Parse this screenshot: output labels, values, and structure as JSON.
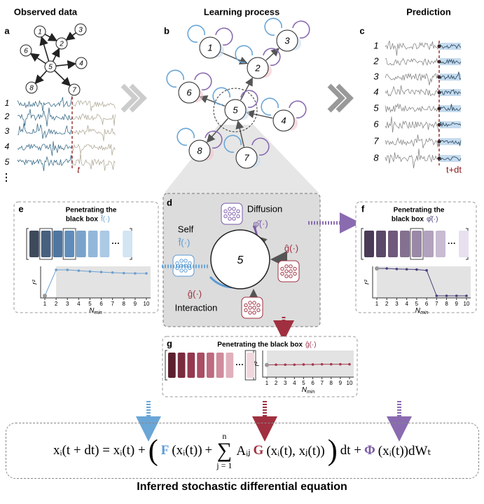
{
  "titles": [
    "Observed data",
    "Learning process",
    "Prediction"
  ],
  "panel_a": {
    "letter": "a",
    "nodes": [
      "1",
      "2",
      "3",
      "4",
      "5",
      "6",
      "7",
      "8"
    ],
    "series_labels": [
      "1",
      "2",
      "3",
      "4",
      "5"
    ],
    "more": "⋮",
    "time_label": "t"
  },
  "panel_b": {
    "letter": "b",
    "nodes": [
      "1",
      "2",
      "3",
      "4",
      "5",
      "6",
      "7",
      "8"
    ]
  },
  "panel_c": {
    "letter": "c",
    "series_labels": [
      "1",
      "2",
      "3",
      "4",
      "5",
      "6",
      "7",
      "8"
    ],
    "time_label": "t+dt"
  },
  "panel_d": {
    "letter": "d",
    "node": "5",
    "diffusion": "Diffusion",
    "phi": "φ̂(·)",
    "self": "Self",
    "f": "f̂(·)",
    "g_right": "ĝ(·)",
    "g_bottom": "ĝ(·)",
    "interaction": "Interaction"
  },
  "panel_e": {
    "letter": "e",
    "title_lines": [
      "Penetrating the",
      "black box"
    ],
    "func": "f̂(·)",
    "ellipsis": "···",
    "bar_colors": [
      "#3e4a5c",
      "#47607e",
      "#4f76a0",
      "#5f8cba",
      "#7aa3cc",
      "#93b7db",
      "#acc9e5",
      "#d3e4f3"
    ],
    "highlighted": [
      1,
      3
    ],
    "chart": {
      "type": "line",
      "y_label": "r²",
      "x_label": "N",
      "x_label_sub": "min",
      "xlim": [
        1,
        10
      ],
      "ylim": [
        0,
        1
      ],
      "xticks": [
        1,
        2,
        3,
        4,
        5,
        6,
        7,
        8,
        9,
        10
      ],
      "values": [
        0,
        0.95,
        0.95,
        0.92,
        0.89,
        0.87,
        0.85,
        0.83,
        0.82,
        0.82
      ],
      "color": "#6b9fcf",
      "shade_from": 2
    }
  },
  "panel_f": {
    "letter": "f",
    "title_lines": [
      "Penetrating the",
      "black box"
    ],
    "func": "φ̂(·)",
    "ellipsis": "···",
    "bar_colors": [
      "#4a3a55",
      "#5c4868",
      "#70597c",
      "#84718f",
      "#9a88a6",
      "#b2a2bd",
      "#c8bbd2",
      "#e8e0ef"
    ],
    "highlighted": [
      4
    ],
    "chart": {
      "type": "line",
      "y_label": "r²",
      "x_label": "N",
      "x_label_sub": "min",
      "xlim": [
        1,
        10
      ],
      "ylim": [
        0,
        1
      ],
      "xticks": [
        1,
        2,
        3,
        4,
        5,
        6,
        7,
        8,
        9,
        10
      ],
      "values": [
        1,
        1,
        0.98,
        0.97,
        0.96,
        0.93,
        0,
        0,
        0,
        0
      ],
      "color": "#4a3d7a",
      "shade_from": 1
    }
  },
  "panel_g": {
    "letter": "g",
    "title_lines": [
      "Penetrating the black box"
    ],
    "func": "ĝ(·)",
    "ellipsis": "···",
    "bar_colors": [
      "#5c1f2e",
      "#7a2b3e",
      "#94384f",
      "#a94e64",
      "#bd6b7f",
      "#cf8c9c",
      "#e0b1bc",
      "#f0d7dd"
    ],
    "highlighted": [
      7
    ],
    "chart": {
      "type": "line",
      "y_label": "r²",
      "x_label": "N",
      "x_label_sub": "min",
      "xlim": [
        1,
        10
      ],
      "ylim": [
        0,
        1
      ],
      "xticks": [
        1,
        2,
        3,
        4,
        5,
        6,
        7,
        8,
        9,
        10
      ],
      "values": [
        0.45,
        0.46,
        0.46,
        0.46,
        0.47,
        0.47,
        0.48,
        0.48,
        0.48,
        0.48
      ],
      "color": "#a23a50",
      "shade_from": 1
    }
  },
  "equation": {
    "lhs": "xᵢ(t + dt) = xᵢ(t) +",
    "open": "(",
    "F": "F",
    "F_arg": "(xᵢ(t))",
    "plus": "+",
    "sum_top": "n",
    "sum": "∑",
    "sum_bottom": "j = 1",
    "A": "Aᵢⱼ",
    "G": "G",
    "G_arg": "(xᵢ(t), xⱼ(t))",
    "close": ")",
    "dt": "dt +",
    "Phi": "Φ",
    "Phi_arg": "(xᵢ(t))dWₜ"
  },
  "caption": "Inferred stochastic differential equation"
}
